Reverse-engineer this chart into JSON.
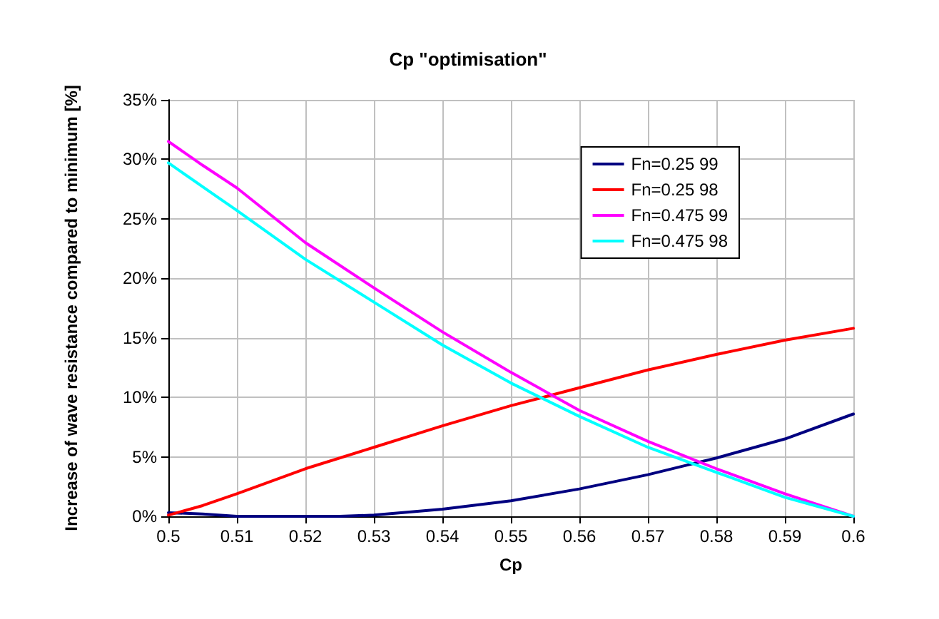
{
  "chart_data": {
    "type": "line",
    "title": "Cp \"optimisation\"",
    "xlabel": "Cp",
    "ylabel": "Increase of wave resistance compared to minimum [%]",
    "x": [
      0.5,
      0.505,
      0.51,
      0.52,
      0.53,
      0.54,
      0.55,
      0.56,
      0.57,
      0.58,
      0.59,
      0.6
    ],
    "series": [
      {
        "name": "Fn=0.25 99",
        "color": "#000080",
        "x": [
          0.5,
          0.505,
          0.51,
          0.52,
          0.525,
          0.53,
          0.54,
          0.55,
          0.56,
          0.57,
          0.575,
          0.58,
          0.59,
          0.6
        ],
        "values": [
          0.3,
          0.2,
          0,
          0,
          0,
          0.1,
          0.6,
          1.3,
          2.3,
          3.5,
          4.2,
          4.9,
          6.5,
          8.6
        ]
      },
      {
        "name": "Fn=0.25 98",
        "color": "#ff0000",
        "values": [
          0.1,
          0.9,
          1.9,
          4.0,
          5.8,
          7.6,
          9.3,
          10.8,
          12.3,
          13.6,
          14.8,
          15.8
        ]
      },
      {
        "name": "Fn=0.475 99",
        "color": "#ff00ff",
        "values": [
          31.5,
          29.5,
          27.6,
          23.0,
          19.2,
          15.5,
          12.1,
          8.9,
          6.3,
          4.0,
          1.9,
          0
        ]
      },
      {
        "name": "Fn=0.475 98",
        "color": "#00ffff",
        "values": [
          29.7,
          27.7,
          25.7,
          21.6,
          18.0,
          14.4,
          11.2,
          8.4,
          5.8,
          3.7,
          1.6,
          0
        ]
      }
    ],
    "xlim": [
      0.5,
      0.6
    ],
    "xticks": [
      0.5,
      0.51,
      0.52,
      0.53,
      0.54,
      0.55,
      0.56,
      0.57,
      0.58,
      0.59,
      0.6
    ],
    "ylim": [
      0,
      35
    ],
    "yticks": [
      {
        "value": 0,
        "label": "0%"
      },
      {
        "value": 5,
        "label": "5%"
      },
      {
        "value": 10,
        "label": "10%"
      },
      {
        "value": 15,
        "label": "15%"
      },
      {
        "value": 20,
        "label": "20%"
      },
      {
        "value": 25,
        "label": "25%"
      },
      {
        "value": 30,
        "label": "30%"
      },
      {
        "value": 35,
        "label": "35%"
      }
    ],
    "grid": true,
    "legend": "top right",
    "marker": "none",
    "line_style": "solid"
  }
}
